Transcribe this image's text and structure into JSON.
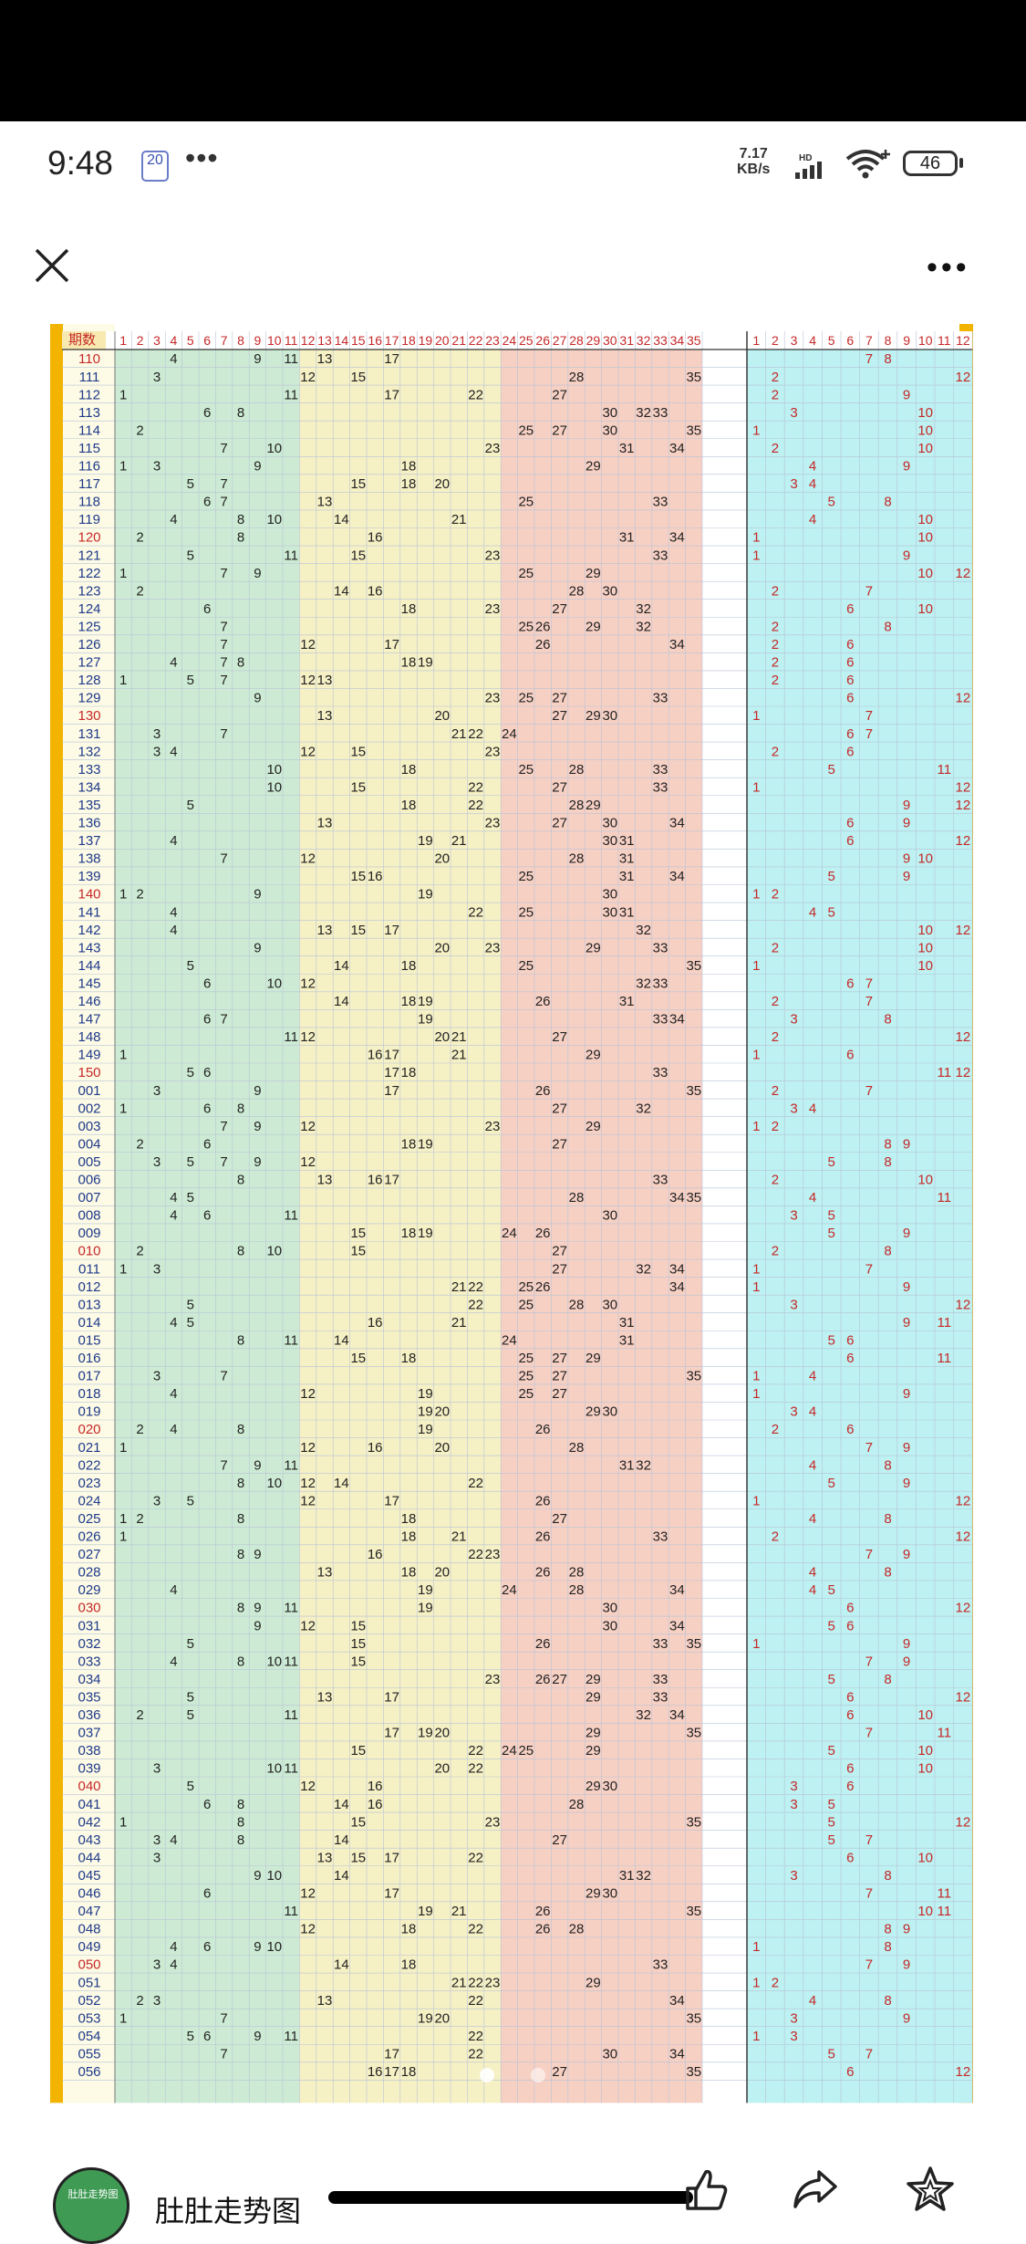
{
  "status_bar": {
    "time": "9:48",
    "notification_badge": "20",
    "overflow": "•••",
    "net_speed_value": "7.17",
    "net_speed_unit": "KB/s",
    "signal_label": "HD",
    "battery": "46"
  },
  "app_bar": {
    "close_icon": "close-icon",
    "more_icon": "more-icon",
    "more_label": "•••"
  },
  "chart_data": {
    "type": "table",
    "header_label": "期数",
    "header_red": [
      "1",
      "2",
      "3",
      "4",
      "5",
      "6",
      "7",
      "8",
      "9",
      "10",
      "11",
      "12",
      "13",
      "14",
      "15",
      "16",
      "17",
      "18",
      "19",
      "20",
      "21",
      "22",
      "23",
      "24",
      "25",
      "26",
      "27",
      "28",
      "29",
      "30",
      "31",
      "32",
      "33",
      "34",
      "35"
    ],
    "header_blue": [
      "1",
      "2",
      "3",
      "4",
      "5",
      "6",
      "7",
      "8",
      "9",
      "10",
      "11",
      "12"
    ],
    "rows": [
      {
        "period": "110",
        "red": [
          4,
          9,
          11,
          13,
          17
        ],
        "blue": [
          7,
          8
        ]
      },
      {
        "period": "111",
        "red": [
          3,
          12,
          15,
          28,
          35
        ],
        "blue": [
          2,
          12
        ]
      },
      {
        "period": "112",
        "red": [
          1,
          11,
          17,
          22,
          27
        ],
        "blue": [
          2,
          9
        ]
      },
      {
        "period": "113",
        "red": [
          6,
          8,
          30,
          32,
          33
        ],
        "blue": [
          3,
          10
        ]
      },
      {
        "period": "114",
        "red": [
          2,
          25,
          27,
          30,
          35
        ],
        "blue": [
          1,
          10
        ]
      },
      {
        "period": "115",
        "red": [
          7,
          10,
          23,
          31,
          34
        ],
        "blue": [
          2,
          10
        ]
      },
      {
        "period": "116",
        "red": [
          1,
          3,
          9,
          18,
          29
        ],
        "blue": [
          4,
          9
        ]
      },
      {
        "period": "117",
        "red": [
          5,
          7,
          15,
          18,
          20
        ],
        "blue": [
          3,
          4
        ]
      },
      {
        "period": "118",
        "red": [
          6,
          7,
          13,
          25,
          33
        ],
        "blue": [
          5,
          8
        ]
      },
      {
        "period": "119",
        "red": [
          4,
          8,
          10,
          14,
          21
        ],
        "blue": [
          4,
          10
        ]
      },
      {
        "period": "120",
        "red": [
          2,
          8,
          16,
          31,
          34
        ],
        "blue": [
          1,
          10
        ]
      },
      {
        "period": "121",
        "red": [
          5,
          11,
          15,
          23,
          33
        ],
        "blue": [
          1,
          9
        ]
      },
      {
        "period": "122",
        "red": [
          1,
          7,
          9,
          25,
          29
        ],
        "blue": [
          10,
          12
        ]
      },
      {
        "period": "123",
        "red": [
          2,
          14,
          16,
          28,
          30
        ],
        "blue": [
          2,
          7
        ]
      },
      {
        "period": "124",
        "red": [
          6,
          18,
          23,
          27,
          32
        ],
        "blue": [
          6,
          10
        ]
      },
      {
        "period": "125",
        "red": [
          7,
          25,
          26,
          29,
          32
        ],
        "blue": [
          2,
          8
        ]
      },
      {
        "period": "126",
        "red": [
          7,
          12,
          17,
          26,
          34
        ],
        "blue": [
          2,
          6
        ]
      },
      {
        "period": "127",
        "red": [
          4,
          7,
          8,
          18,
          19
        ],
        "blue": [
          2,
          6
        ]
      },
      {
        "period": "128",
        "red": [
          1,
          5,
          7,
          12,
          13
        ],
        "blue": [
          2,
          6
        ]
      },
      {
        "period": "129",
        "red": [
          9,
          23,
          25,
          27,
          33
        ],
        "blue": [
          6,
          12
        ]
      },
      {
        "period": "130",
        "red": [
          13,
          20,
          27,
          29,
          30
        ],
        "blue": [
          1,
          7
        ]
      },
      {
        "period": "131",
        "red": [
          3,
          7,
          21,
          22,
          24
        ],
        "blue": [
          6,
          7
        ]
      },
      {
        "period": "132",
        "red": [
          3,
          4,
          12,
          15,
          23
        ],
        "blue": [
          2,
          6
        ]
      },
      {
        "period": "133",
        "red": [
          10,
          18,
          25,
          28,
          33
        ],
        "blue": [
          5,
          11
        ]
      },
      {
        "period": "134",
        "red": [
          10,
          15,
          22,
          27,
          33
        ],
        "blue": [
          1,
          12
        ]
      },
      {
        "period": "135",
        "red": [
          5,
          18,
          22,
          28,
          29
        ],
        "blue": [
          9,
          12
        ]
      },
      {
        "period": "136",
        "red": [
          13,
          23,
          27,
          30,
          34
        ],
        "blue": [
          6,
          9
        ]
      },
      {
        "period": "137",
        "red": [
          4,
          19,
          21,
          30,
          31
        ],
        "blue": [
          6,
          12
        ]
      },
      {
        "period": "138",
        "red": [
          7,
          12,
          20,
          28,
          31
        ],
        "blue": [
          9,
          10
        ]
      },
      {
        "period": "139",
        "red": [
          15,
          16,
          25,
          31,
          34
        ],
        "blue": [
          5,
          9
        ]
      },
      {
        "period": "140",
        "red": [
          1,
          2,
          9,
          19,
          30
        ],
        "blue": [
          1,
          2
        ]
      },
      {
        "period": "141",
        "red": [
          4,
          22,
          25,
          30,
          31
        ],
        "blue": [
          4,
          5
        ]
      },
      {
        "period": "142",
        "red": [
          4,
          13,
          15,
          17,
          32
        ],
        "blue": [
          10,
          12
        ]
      },
      {
        "period": "143",
        "red": [
          9,
          20,
          23,
          29,
          33
        ],
        "blue": [
          2,
          10
        ]
      },
      {
        "period": "144",
        "red": [
          5,
          14,
          18,
          25,
          35
        ],
        "blue": [
          1,
          10
        ]
      },
      {
        "period": "145",
        "red": [
          6,
          10,
          12,
          32,
          33
        ],
        "blue": [
          6,
          7
        ]
      },
      {
        "period": "146",
        "red": [
          14,
          18,
          19,
          26,
          31
        ],
        "blue": [
          2,
          7
        ]
      },
      {
        "period": "147",
        "red": [
          6,
          7,
          19,
          33,
          34
        ],
        "blue": [
          3,
          8
        ]
      },
      {
        "period": "148",
        "red": [
          11,
          12,
          20,
          21,
          27
        ],
        "blue": [
          2,
          12
        ]
      },
      {
        "period": "149",
        "red": [
          1,
          16,
          17,
          21,
          29
        ],
        "blue": [
          1,
          6
        ]
      },
      {
        "period": "150",
        "red": [
          5,
          6,
          17,
          18,
          33
        ],
        "blue": [
          11,
          12
        ]
      },
      {
        "period": "001",
        "red": [
          3,
          9,
          17,
          26,
          35
        ],
        "blue": [
          2,
          7
        ]
      },
      {
        "period": "002",
        "red": [
          1,
          6,
          8,
          27,
          32
        ],
        "blue": [
          3,
          4
        ]
      },
      {
        "period": "003",
        "red": [
          7,
          9,
          12,
          23,
          29
        ],
        "blue": [
          1,
          2
        ]
      },
      {
        "period": "004",
        "red": [
          2,
          6,
          18,
          19,
          27
        ],
        "blue": [
          8,
          9
        ]
      },
      {
        "period": "005",
        "red": [
          3,
          5,
          7,
          9,
          12
        ],
        "blue": [
          5,
          8
        ]
      },
      {
        "period": "006",
        "red": [
          8,
          13,
          16,
          17,
          33
        ],
        "blue": [
          2,
          10
        ]
      },
      {
        "period": "007",
        "red": [
          4,
          5,
          28,
          34,
          35
        ],
        "blue": [
          4,
          11
        ]
      },
      {
        "period": "008",
        "red": [
          4,
          6,
          11,
          30
        ],
        "blue": [
          3,
          5
        ]
      },
      {
        "period": "009",
        "red": [
          15,
          18,
          19,
          24,
          26
        ],
        "blue": [
          5,
          9
        ]
      },
      {
        "period": "010",
        "red": [
          2,
          8,
          10,
          15,
          27
        ],
        "blue": [
          2,
          8
        ]
      },
      {
        "period": "011",
        "red": [
          1,
          3,
          27,
          32,
          34
        ],
        "blue": [
          1,
          7
        ]
      },
      {
        "period": "012",
        "red": [
          21,
          22,
          25,
          26,
          34
        ],
        "blue": [
          1,
          9
        ]
      },
      {
        "period": "013",
        "red": [
          5,
          22,
          25,
          28,
          30
        ],
        "blue": [
          3,
          12
        ]
      },
      {
        "period": "014",
        "red": [
          4,
          5,
          16,
          21,
          31
        ],
        "blue": [
          9,
          11
        ]
      },
      {
        "period": "015",
        "red": [
          8,
          11,
          14,
          24,
          31
        ],
        "blue": [
          5,
          6
        ]
      },
      {
        "period": "016",
        "red": [
          15,
          18,
          25,
          27,
          29
        ],
        "blue": [
          6,
          11
        ]
      },
      {
        "period": "017",
        "red": [
          3,
          7,
          25,
          27,
          35
        ],
        "blue": [
          1,
          4
        ]
      },
      {
        "period": "018",
        "red": [
          4,
          12,
          19,
          25,
          27
        ],
        "blue": [
          1,
          9
        ]
      },
      {
        "period": "019",
        "red": [
          19,
          20,
          29,
          30
        ],
        "blue": [
          3,
          4
        ]
      },
      {
        "period": "020",
        "red": [
          2,
          4,
          8,
          19,
          26
        ],
        "blue": [
          2,
          6
        ]
      },
      {
        "period": "021",
        "red": [
          1,
          12,
          16,
          20,
          28
        ],
        "blue": [
          7,
          9
        ]
      },
      {
        "period": "022",
        "red": [
          7,
          9,
          11,
          31,
          32
        ],
        "blue": [
          4,
          8
        ]
      },
      {
        "period": "023",
        "red": [
          8,
          10,
          12,
          14,
          22
        ],
        "blue": [
          5,
          9
        ]
      },
      {
        "period": "024",
        "red": [
          3,
          5,
          12,
          17,
          26
        ],
        "blue": [
          1,
          12
        ]
      },
      {
        "period": "025",
        "red": [
          1,
          2,
          8,
          18,
          27
        ],
        "blue": [
          4,
          8
        ]
      },
      {
        "period": "026",
        "red": [
          1,
          18,
          21,
          26,
          33
        ],
        "blue": [
          2,
          12
        ]
      },
      {
        "period": "027",
        "red": [
          8,
          9,
          16,
          22,
          23
        ],
        "blue": [
          7,
          9
        ]
      },
      {
        "period": "028",
        "red": [
          13,
          18,
          20,
          26,
          28
        ],
        "blue": [
          4,
          8
        ]
      },
      {
        "period": "029",
        "red": [
          4,
          19,
          24,
          28,
          34
        ],
        "blue": [
          4,
          5
        ]
      },
      {
        "period": "030",
        "red": [
          8,
          9,
          11,
          19,
          30
        ],
        "blue": [
          6,
          12
        ]
      },
      {
        "period": "031",
        "red": [
          9,
          12,
          15,
          30,
          34
        ],
        "blue": [
          5,
          6
        ]
      },
      {
        "period": "032",
        "red": [
          5,
          15,
          26,
          33,
          35
        ],
        "blue": [
          1,
          9
        ]
      },
      {
        "period": "033",
        "red": [
          4,
          8,
          10,
          11,
          15
        ],
        "blue": [
          7,
          9
        ]
      },
      {
        "period": "034",
        "red": [
          23,
          26,
          27,
          29,
          33
        ],
        "blue": [
          5,
          8
        ]
      },
      {
        "period": "035",
        "red": [
          5,
          13,
          17,
          29,
          33
        ],
        "blue": [
          6,
          12
        ]
      },
      {
        "period": "036",
        "red": [
          2,
          5,
          11,
          32,
          34
        ],
        "blue": [
          6,
          10
        ]
      },
      {
        "period": "037",
        "red": [
          17,
          19,
          20,
          29,
          35
        ],
        "blue": [
          7,
          11
        ]
      },
      {
        "period": "038",
        "red": [
          15,
          22,
          24,
          25,
          29
        ],
        "blue": [
          5,
          10
        ]
      },
      {
        "period": "039",
        "red": [
          3,
          10,
          11,
          20,
          22
        ],
        "blue": [
          6,
          10
        ]
      },
      {
        "period": "040",
        "red": [
          5,
          12,
          16,
          29,
          30
        ],
        "blue": [
          3,
          6
        ]
      },
      {
        "period": "041",
        "red": [
          6,
          8,
          14,
          16,
          28
        ],
        "blue": [
          3,
          5
        ]
      },
      {
        "period": "042",
        "red": [
          1,
          8,
          15,
          23,
          35
        ],
        "blue": [
          5,
          12
        ]
      },
      {
        "period": "043",
        "red": [
          3,
          4,
          8,
          14,
          27
        ],
        "blue": [
          5,
          7
        ]
      },
      {
        "period": "044",
        "red": [
          3,
          13,
          15,
          17,
          22
        ],
        "blue": [
          6,
          10
        ]
      },
      {
        "period": "045",
        "red": [
          9,
          10,
          14,
          31,
          32
        ],
        "blue": [
          3,
          8
        ]
      },
      {
        "period": "046",
        "red": [
          6,
          12,
          17,
          29,
          30
        ],
        "blue": [
          7,
          11
        ]
      },
      {
        "period": "047",
        "red": [
          11,
          19,
          21,
          26,
          35
        ],
        "blue": [
          10,
          11
        ]
      },
      {
        "period": "048",
        "red": [
          12,
          18,
          22,
          26,
          28
        ],
        "blue": [
          8,
          9
        ]
      },
      {
        "period": "049",
        "red": [
          4,
          6,
          9,
          10
        ],
        "blue": [
          1,
          8
        ]
      },
      {
        "period": "050",
        "red": [
          3,
          4,
          14,
          18,
          33
        ],
        "blue": [
          7,
          9
        ]
      },
      {
        "period": "051",
        "red": [
          21,
          22,
          23,
          29
        ],
        "blue": [
          1,
          2
        ]
      },
      {
        "period": "052",
        "red": [
          2,
          3,
          13,
          22,
          34
        ],
        "blue": [
          4,
          8
        ]
      },
      {
        "period": "053",
        "red": [
          1,
          7,
          19,
          20,
          35
        ],
        "blue": [
          3,
          9
        ]
      },
      {
        "period": "054",
        "red": [
          5,
          6,
          9,
          11,
          22
        ],
        "blue": [
          1,
          3
        ]
      },
      {
        "period": "055",
        "red": [
          7,
          17,
          22,
          30,
          34
        ],
        "blue": [
          5,
          7
        ]
      },
      {
        "period": "056",
        "red": [
          16,
          17,
          18,
          27,
          35
        ],
        "blue": [
          6,
          12
        ]
      }
    ]
  },
  "bottom_bar": {
    "author": "肚肚走势图",
    "avatar_label": "肚肚走势图",
    "like_icon": "thumbs-up-icon",
    "share_icon": "share-icon",
    "collect_icon": "star-icon"
  }
}
